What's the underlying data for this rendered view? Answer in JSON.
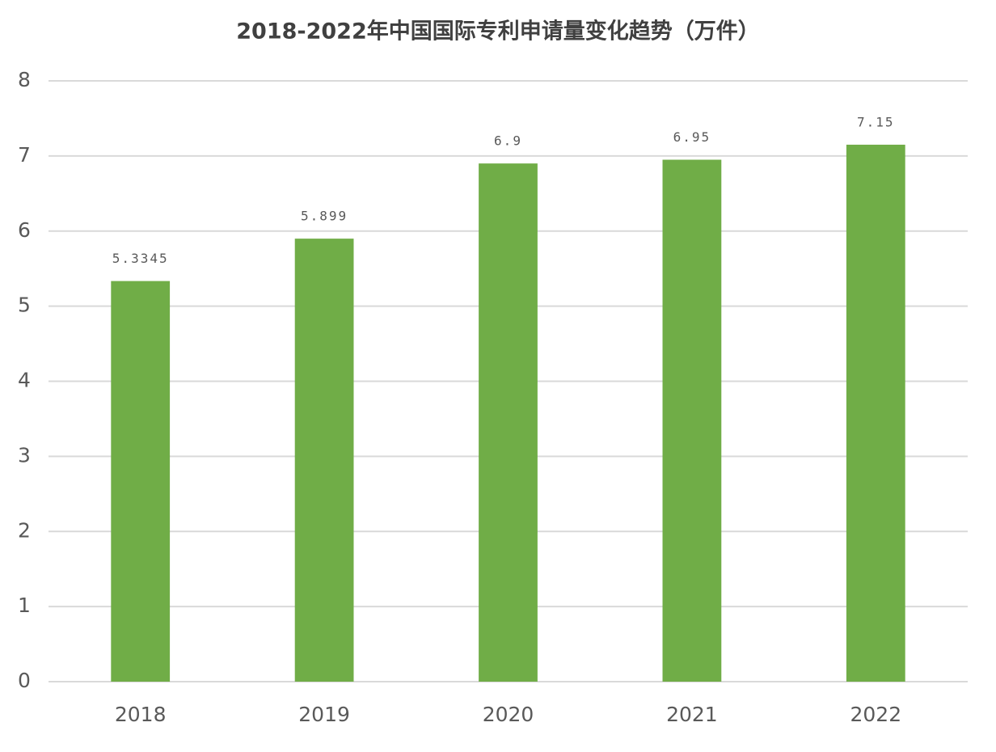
{
  "chart_data": {
    "type": "bar",
    "title": "2018-2022年中国国际专利申请量变化趋势（万件）",
    "categories": [
      "2018",
      "2019",
      "2020",
      "2021",
      "2022"
    ],
    "values": [
      5.3345,
      5.899,
      6.9,
      6.95,
      7.15
    ],
    "color": "#70ad47",
    "ylim": [
      0,
      8
    ],
    "yticks": [
      0,
      1,
      2,
      3,
      4,
      5,
      6,
      7,
      8
    ],
    "grid": true
  }
}
